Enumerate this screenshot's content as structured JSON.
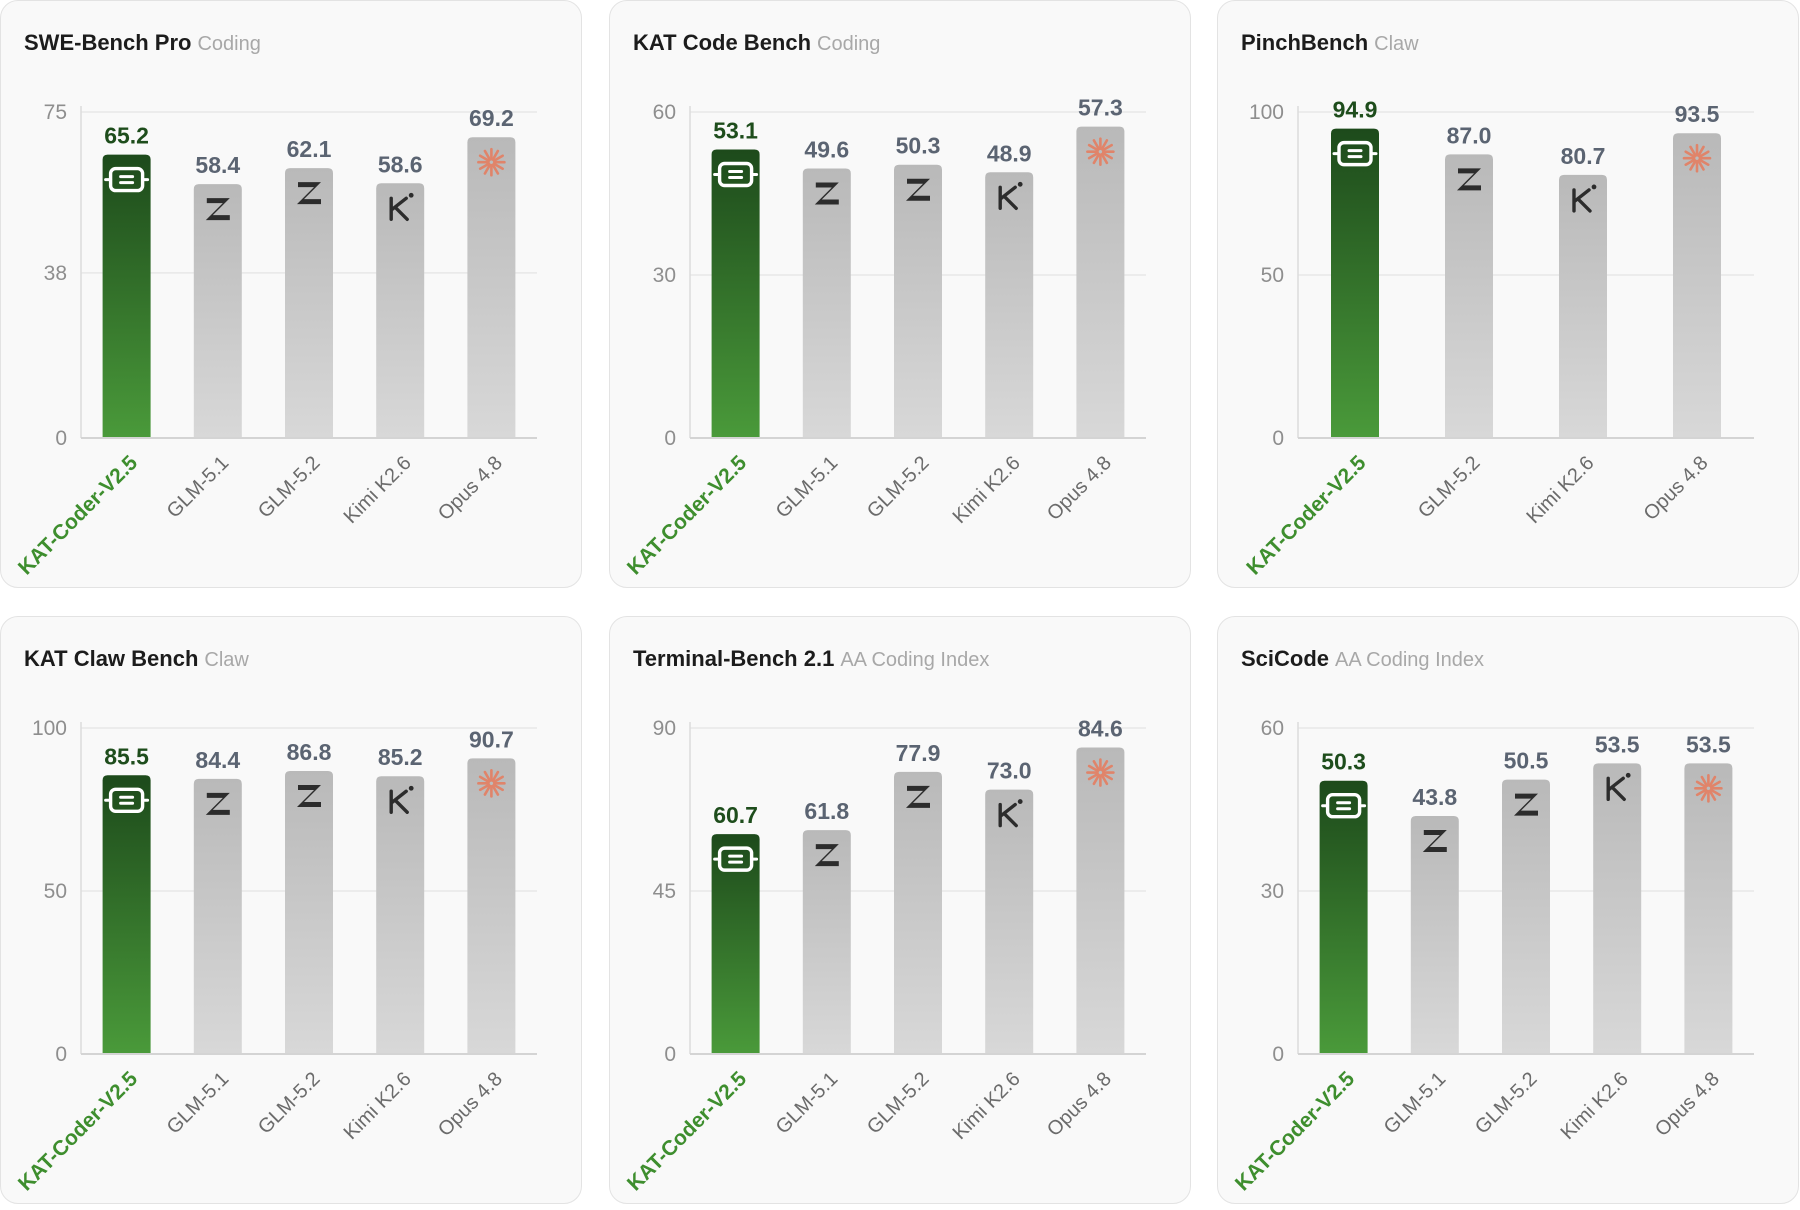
{
  "colors": {
    "highlight_top": "#1d4a1b",
    "highlight_bottom": "#4a9a3a",
    "highlight_value": "#1e4d1c",
    "highlight_label": "#3e8e2e",
    "gray_top": "#b9b9b9",
    "gray_bottom": "#d8d8d8",
    "value_text": "#5b6472",
    "axis_text": "#8e8e8e",
    "anthropic_icon": "#e0846a"
  },
  "cards": [
    {
      "title": "SWE-Bench Pro",
      "category": "Coding",
      "chart_data": {
        "type": "bar",
        "categories": [
          "KAT-Coder-V2.5",
          "GLM-5.1",
          "GLM-5.2",
          "Kimi K2.6",
          "Opus 4.8"
        ],
        "values": [
          65.2,
          58.4,
          62.1,
          58.6,
          69.2
        ],
        "value_labels": [
          "65.2",
          "58.4",
          "62.1",
          "58.6",
          "69.2"
        ],
        "icons": [
          "kat-icon",
          "zhipu-icon",
          "zhipu-icon",
          "kimi-icon",
          "anthropic-icon"
        ],
        "highlight_index": 0,
        "yticks": [
          0,
          38,
          75
        ],
        "ylim": [
          0,
          75
        ],
        "grid": true
      }
    },
    {
      "title": "KAT Code Bench",
      "category": "Coding",
      "chart_data": {
        "type": "bar",
        "categories": [
          "KAT-Coder-V2.5",
          "GLM-5.1",
          "GLM-5.2",
          "Kimi K2.6",
          "Opus 4.8"
        ],
        "values": [
          53.1,
          49.6,
          50.3,
          48.9,
          57.3
        ],
        "value_labels": [
          "53.1",
          "49.6",
          "50.3",
          "48.9",
          "57.3"
        ],
        "icons": [
          "kat-icon",
          "zhipu-icon",
          "zhipu-icon",
          "kimi-icon",
          "anthropic-icon"
        ],
        "highlight_index": 0,
        "yticks": [
          0,
          30,
          60
        ],
        "ylim": [
          0,
          60
        ],
        "grid": true
      }
    },
    {
      "title": "PinchBench",
      "category": "Claw",
      "chart_data": {
        "type": "bar",
        "categories": [
          "KAT-Coder-V2.5",
          "GLM-5.2",
          "Kimi K2.6",
          "Opus 4.8"
        ],
        "values": [
          94.9,
          87.0,
          80.7,
          93.5
        ],
        "value_labels": [
          "94.9",
          "87.0",
          "80.7",
          "93.5"
        ],
        "icons": [
          "kat-icon",
          "zhipu-icon",
          "kimi-icon",
          "anthropic-icon"
        ],
        "highlight_index": 0,
        "yticks": [
          0,
          50,
          100
        ],
        "ylim": [
          0,
          100
        ],
        "grid": true
      }
    },
    {
      "title": "KAT Claw Bench",
      "category": "Claw",
      "chart_data": {
        "type": "bar",
        "categories": [
          "KAT-Coder-V2.5",
          "GLM-5.1",
          "GLM-5.2",
          "Kimi K2.6",
          "Opus 4.8"
        ],
        "values": [
          85.5,
          84.4,
          86.8,
          85.2,
          90.7
        ],
        "value_labels": [
          "85.5",
          "84.4",
          "86.8",
          "85.2",
          "90.7"
        ],
        "icons": [
          "kat-icon",
          "zhipu-icon",
          "zhipu-icon",
          "kimi-icon",
          "anthropic-icon"
        ],
        "highlight_index": 0,
        "yticks": [
          0,
          50,
          100
        ],
        "ylim": [
          0,
          100
        ],
        "grid": true
      }
    },
    {
      "title": "Terminal-Bench 2.1",
      "category": "AA Coding Index",
      "chart_data": {
        "type": "bar",
        "categories": [
          "KAT-Coder-V2.5",
          "GLM-5.1",
          "GLM-5.2",
          "Kimi K2.6",
          "Opus 4.8"
        ],
        "values": [
          60.7,
          61.8,
          77.9,
          73.0,
          84.6
        ],
        "value_labels": [
          "60.7",
          "61.8",
          "77.9",
          "73.0",
          "84.6"
        ],
        "icons": [
          "kat-icon",
          "zhipu-icon",
          "zhipu-icon",
          "kimi-icon",
          "anthropic-icon"
        ],
        "highlight_index": 0,
        "yticks": [
          0,
          45,
          90
        ],
        "ylim": [
          0,
          90
        ],
        "grid": true
      }
    },
    {
      "title": "SciCode",
      "category": "AA Coding Index",
      "chart_data": {
        "type": "bar",
        "categories": [
          "KAT-Coder-V2.5",
          "GLM-5.1",
          "GLM-5.2",
          "Kimi K2.6",
          "Opus 4.8"
        ],
        "values": [
          50.3,
          43.8,
          50.5,
          53.5,
          53.5
        ],
        "value_labels": [
          "50.3",
          "43.8",
          "50.5",
          "53.5",
          "53.5"
        ],
        "icons": [
          "kat-icon",
          "zhipu-icon",
          "zhipu-icon",
          "kimi-icon",
          "anthropic-icon"
        ],
        "highlight_index": 0,
        "yticks": [
          0,
          30,
          60
        ],
        "ylim": [
          0,
          60
        ],
        "grid": true
      }
    }
  ]
}
